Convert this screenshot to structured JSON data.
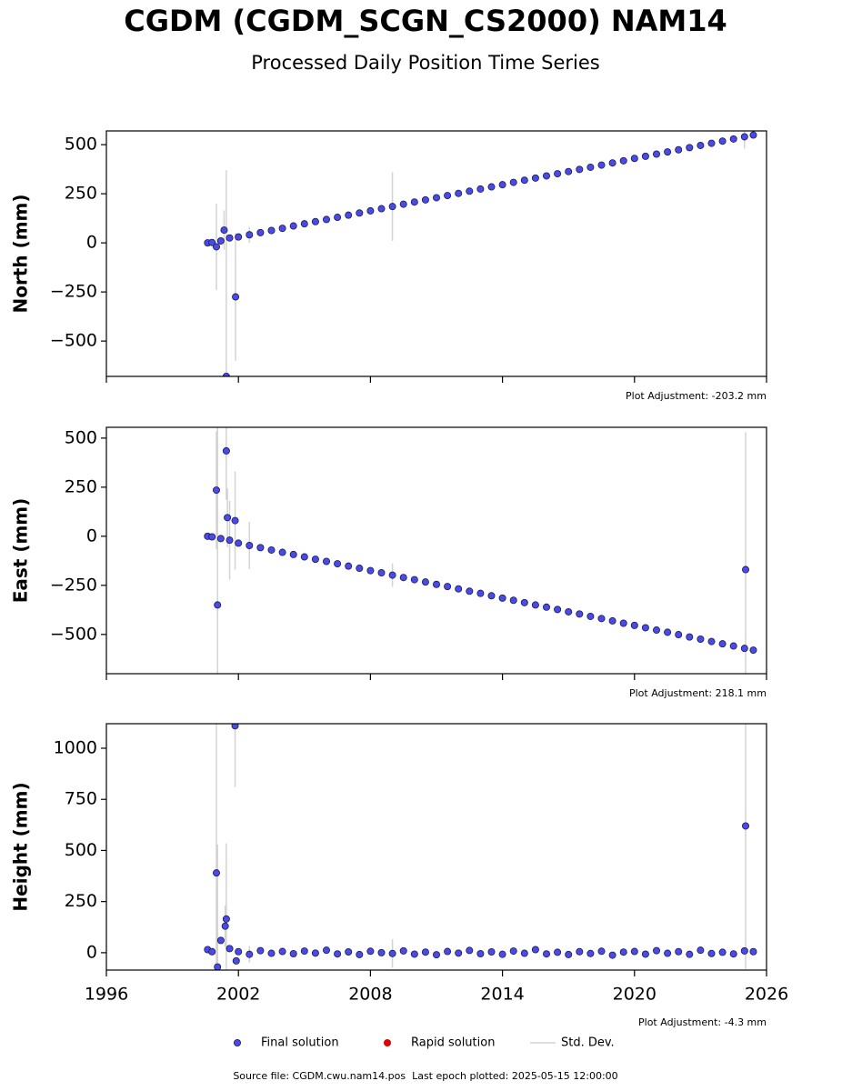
{
  "title": "CGDM (CGDM_SCGN_CS2000) NAM14",
  "subtitle": "Processed Daily Position Time Series",
  "source": "Source file: CGDM.cwu.nam14.pos  Last epoch plotted: 2025-05-15 12:00:00",
  "legend": [
    {
      "name": "Final solution",
      "color": "#4a4ae8",
      "kind": "marker"
    },
    {
      "name": "Rapid solution",
      "color": "#dd0000",
      "kind": "marker"
    },
    {
      "name": "Std. Dev.",
      "color": "#d3d3d3",
      "kind": "line"
    }
  ],
  "chart_data": [
    {
      "type": "scatter",
      "ylabel": "North (mm)",
      "annotation": "Plot Adjustment: -203.2 mm",
      "xlim": [
        1996,
        2026
      ],
      "xticks": [
        1996,
        2002,
        2008,
        2014,
        2020,
        2026
      ],
      "xtick_labels": false,
      "ylim": [
        -680,
        570
      ],
      "yticks": [
        {
          "value": -500,
          "label": "−500"
        },
        {
          "value": -250,
          "label": "−250"
        },
        0,
        250,
        500
      ],
      "series": [
        {
          "name": "Final solution",
          "color": "#4a4ae8",
          "x": [
            2000.6,
            2000.8,
            2001.0,
            2001.2,
            2001.35,
            2001.45,
            2001.6,
            2001.87,
            2002.0,
            2002.5,
            2003.0,
            2003.5,
            2004.0,
            2004.5,
            2005.0,
            2005.5,
            2006.0,
            2006.5,
            2007.0,
            2007.5,
            2008.0,
            2008.5,
            2009.0,
            2009.5,
            2010.0,
            2010.5,
            2011.0,
            2011.5,
            2012.0,
            2012.5,
            2013.0,
            2013.5,
            2014.0,
            2014.5,
            2015.0,
            2015.5,
            2016.0,
            2016.5,
            2017.0,
            2017.5,
            2018.0,
            2018.5,
            2019.0,
            2019.5,
            2020.0,
            2020.5,
            2021.0,
            2021.5,
            2022.0,
            2022.5,
            2023.0,
            2023.5,
            2024.0,
            2024.5,
            2025.0,
            2025.4
          ],
          "values": [
            0,
            2,
            -20,
            10,
            65,
            -680,
            25,
            -275,
            30,
            41,
            52,
            63,
            74,
            86,
            97,
            108,
            119,
            130,
            141,
            152,
            163,
            174,
            185,
            197,
            208,
            219,
            230,
            241,
            252,
            263,
            274,
            285,
            296,
            308,
            319,
            330,
            341,
            352,
            363,
            374,
            385,
            396,
            407,
            418,
            430,
            441,
            452,
            463,
            474,
            485,
            496,
            507,
            518,
            529,
            540,
            549
          ],
          "errors": [
            3,
            3,
            220,
            3,
            100,
            1050,
            3,
            325,
            4,
            40,
            4,
            4,
            4,
            4,
            4,
            4,
            4,
            4,
            4,
            4,
            4,
            4,
            175,
            4,
            4,
            4,
            4,
            4,
            4,
            4,
            4,
            4,
            4,
            4,
            4,
            4,
            4,
            4,
            4,
            4,
            4,
            4,
            4,
            4,
            4,
            4,
            4,
            4,
            4,
            4,
            4,
            4,
            4,
            4,
            60,
            4
          ]
        }
      ]
    },
    {
      "type": "scatter",
      "ylabel": "East (mm)",
      "annotation": "Plot Adjustment: 218.1 mm",
      "xlim": [
        1996,
        2026
      ],
      "xticks": [
        1996,
        2002,
        2008,
        2014,
        2020,
        2026
      ],
      "xtick_labels": false,
      "ylim": [
        -700,
        555
      ],
      "yticks": [
        {
          "value": -500,
          "label": "−500"
        },
        {
          "value": -250,
          "label": "−250"
        },
        0,
        250,
        500
      ],
      "series": [
        {
          "name": "Final solution",
          "color": "#4a4ae8",
          "x": [
            2000.6,
            2000.8,
            2001.0,
            2001.05,
            2001.2,
            2001.45,
            2001.5,
            2001.6,
            2001.85,
            2002.0,
            2002.5,
            2003.0,
            2003.5,
            2004.0,
            2004.5,
            2005.0,
            2005.5,
            2006.0,
            2006.5,
            2007.0,
            2007.5,
            2008.0,
            2008.5,
            2009.0,
            2009.5,
            2010.0,
            2010.5,
            2011.0,
            2011.5,
            2012.0,
            2012.5,
            2013.0,
            2013.5,
            2014.0,
            2014.5,
            2015.0,
            2015.5,
            2016.0,
            2016.5,
            2017.0,
            2017.5,
            2018.0,
            2018.5,
            2019.0,
            2019.5,
            2020.0,
            2020.5,
            2021.0,
            2021.5,
            2022.0,
            2022.5,
            2023.0,
            2023.5,
            2024.0,
            2024.5,
            2025.0,
            2025.05,
            2025.4
          ],
          "values": [
            0,
            -3,
            235,
            -350,
            -12,
            435,
            95,
            -20,
            80,
            -35,
            -47,
            -58,
            -70,
            -82,
            -93,
            -105,
            -117,
            -128,
            -140,
            -152,
            -163,
            -175,
            -186,
            -198,
            -210,
            -221,
            -233,
            -245,
            -256,
            -268,
            -280,
            -291,
            -303,
            -315,
            -326,
            -338,
            -350,
            -361,
            -373,
            -385,
            -396,
            -408,
            -419,
            -431,
            -443,
            -454,
            -466,
            -478,
            -489,
            -501,
            -513,
            -524,
            -536,
            -548,
            -559,
            -571,
            -170,
            -580
          ],
          "errors": [
            3,
            3,
            300,
            1000,
            3,
            250,
            150,
            200,
            250,
            4,
            120,
            4,
            4,
            4,
            4,
            4,
            4,
            4,
            4,
            4,
            4,
            4,
            4,
            60,
            4,
            4,
            4,
            4,
            4,
            4,
            4,
            4,
            4,
            4,
            4,
            4,
            4,
            4,
            4,
            4,
            4,
            4,
            4,
            4,
            4,
            4,
            4,
            4,
            4,
            4,
            4,
            4,
            4,
            4,
            4,
            4,
            700,
            4
          ]
        }
      ]
    },
    {
      "type": "scatter",
      "ylabel": "Height (mm)",
      "annotation": "Plot Adjustment: -4.3 mm",
      "xlim": [
        1996,
        2026
      ],
      "xticks": [
        1996,
        2002,
        2008,
        2014,
        2020,
        2026
      ],
      "xtick_labels": true,
      "ylim": [
        -85,
        1120
      ],
      "yticks": [
        0,
        250,
        500,
        750,
        1000
      ],
      "series": [
        {
          "name": "Final solution",
          "color": "#4a4ae8",
          "x": [
            2000.6,
            2000.8,
            2001.0,
            2001.05,
            2001.2,
            2001.4,
            2001.45,
            2001.6,
            2001.85,
            2001.9,
            2002.0,
            2002.5,
            2003.0,
            2003.5,
            2004.0,
            2004.5,
            2005.0,
            2005.5,
            2006.0,
            2006.5,
            2007.0,
            2007.5,
            2008.0,
            2008.5,
            2009.0,
            2009.5,
            2010.0,
            2010.5,
            2011.0,
            2011.5,
            2012.0,
            2012.5,
            2013.0,
            2013.5,
            2014.0,
            2014.5,
            2015.0,
            2015.5,
            2016.0,
            2016.5,
            2017.0,
            2017.5,
            2018.0,
            2018.5,
            2019.0,
            2019.5,
            2020.0,
            2020.5,
            2021.0,
            2021.5,
            2022.0,
            2022.5,
            2023.0,
            2023.5,
            2024.0,
            2024.5,
            2025.0,
            2025.05,
            2025.4
          ],
          "values": [
            15,
            5,
            390,
            -70,
            60,
            130,
            165,
            20,
            1110,
            -40,
            5,
            -8,
            10,
            -3,
            6,
            -5,
            8,
            -2,
            12,
            -6,
            4,
            -9,
            7,
            0,
            -4,
            9,
            -7,
            3,
            -10,
            6,
            -2,
            11,
            -5,
            4,
            -8,
            8,
            -3,
            15,
            -6,
            2,
            -9,
            5,
            -4,
            7,
            -12,
            3,
            6,
            -7,
            10,
            -3,
            5,
            -8,
            12,
            -4,
            2,
            -6,
            9,
            620,
            5
          ],
          "errors": [
            3,
            3,
            800,
            600,
            3,
            100,
            370,
            3,
            300,
            3,
            4,
            40,
            4,
            4,
            4,
            4,
            4,
            4,
            4,
            4,
            4,
            4,
            4,
            4,
            70,
            4,
            4,
            4,
            4,
            4,
            4,
            4,
            4,
            4,
            4,
            4,
            4,
            4,
            4,
            4,
            4,
            4,
            4,
            4,
            4,
            4,
            4,
            4,
            4,
            4,
            4,
            4,
            4,
            4,
            4,
            4,
            4,
            700,
            4
          ]
        }
      ]
    }
  ]
}
